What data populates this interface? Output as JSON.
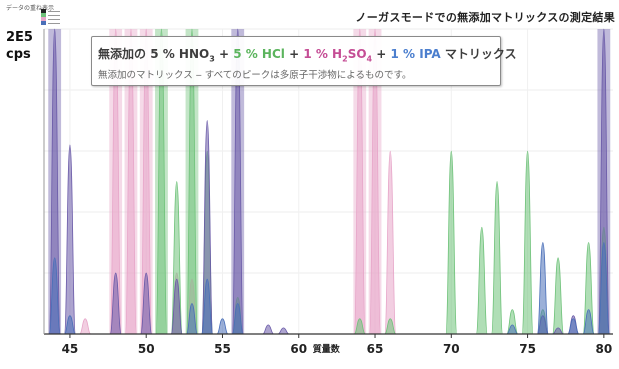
{
  "header": {
    "corner_label": "データの重ね表示",
    "y_unit_line1": "2E5",
    "y_unit_line2": "cps",
    "title": "ノーガスモードでの無添加マトリックスの測定結果"
  },
  "note": {
    "title_parts": [
      {
        "text": "無添加の ",
        "tone": "dark"
      },
      {
        "text": "5 % HNO",
        "tone": "dark"
      },
      {
        "text": "3",
        "tone": "dark",
        "sub": true
      },
      {
        "text": " + ",
        "tone": "plus"
      },
      {
        "text": "5 % HCl",
        "tone": "green"
      },
      {
        "text": " + ",
        "tone": "plus"
      },
      {
        "text": "1 % H",
        "tone": "pink"
      },
      {
        "text": "2",
        "tone": "pink",
        "sub": true
      },
      {
        "text": "SO",
        "tone": "pink"
      },
      {
        "text": "4",
        "tone": "pink",
        "sub": true
      },
      {
        "text": " + ",
        "tone": "plus"
      },
      {
        "text": "1 % IPA",
        "tone": "blue"
      },
      {
        "text": " マトリックス",
        "tone": "dark"
      }
    ],
    "subtitle": "無添加のマトリックス ‒ すべてのピークは多原子干渉物によるものです。"
  },
  "colors": {
    "hno3": "#6a5aa8",
    "hcl": "#6fc27a",
    "h2so4": "#e7a6c9",
    "ipa": "#4a6fb8",
    "title_dark": "#3d3d3d",
    "title_green": "#5bb45d",
    "title_pink": "#c54d95",
    "title_blue": "#4c7fce"
  },
  "chart_data": {
    "type": "area",
    "xlabel": "質量数",
    "ylabel": "",
    "x_ticks": [
      45,
      50,
      55,
      60,
      65,
      70,
      75,
      80
    ],
    "xlim": [
      43.3,
      80.6
    ],
    "ylim": [
      0,
      1
    ],
    "grid": true,
    "series": [
      {
        "key": "h2so4",
        "color": "#e7a6c9",
        "peaks": [
          [
            46,
            0.05
          ],
          [
            48,
            1.0
          ],
          [
            49,
            1.0
          ],
          [
            50,
            1.0
          ],
          [
            52,
            0.2
          ],
          [
            53,
            0.18
          ],
          [
            64,
            1.0
          ],
          [
            65,
            1.0
          ],
          [
            66,
            0.6
          ]
        ]
      },
      {
        "key": "hcl",
        "color": "#6fc27a",
        "peaks": [
          [
            51,
            1.0
          ],
          [
            52,
            0.5
          ],
          [
            53,
            1.0
          ],
          [
            54,
            0.6
          ],
          [
            56,
            0.12
          ],
          [
            64,
            0.05
          ],
          [
            66,
            0.05
          ],
          [
            70,
            0.6
          ],
          [
            72,
            0.35
          ],
          [
            73,
            0.5
          ],
          [
            74,
            0.08
          ],
          [
            75,
            0.6
          ],
          [
            76,
            0.08
          ],
          [
            77,
            0.25
          ],
          [
            79,
            0.3
          ],
          [
            80,
            0.35
          ]
        ]
      },
      {
        "key": "hno3",
        "color": "#6a5aa8",
        "peaks": [
          [
            44,
            1.0
          ],
          [
            45,
            0.62
          ],
          [
            48,
            0.2
          ],
          [
            50,
            0.2
          ],
          [
            52,
            0.18
          ],
          [
            54,
            0.7
          ],
          [
            56,
            1.0
          ],
          [
            58,
            0.03
          ],
          [
            59,
            0.02
          ],
          [
            76,
            0.06
          ],
          [
            77,
            0.02
          ],
          [
            78,
            0.06
          ],
          [
            80,
            1.0
          ]
        ]
      },
      {
        "key": "ipa",
        "color": "#4a6fb8",
        "peaks": [
          [
            44,
            0.25
          ],
          [
            45,
            0.06
          ],
          [
            53,
            0.1
          ],
          [
            54,
            0.18
          ],
          [
            55,
            0.05
          ],
          [
            56,
            0.1
          ],
          [
            74,
            0.03
          ],
          [
            76,
            0.3
          ],
          [
            78,
            0.05
          ],
          [
            79,
            0.08
          ],
          [
            80,
            0.3
          ]
        ]
      }
    ]
  }
}
